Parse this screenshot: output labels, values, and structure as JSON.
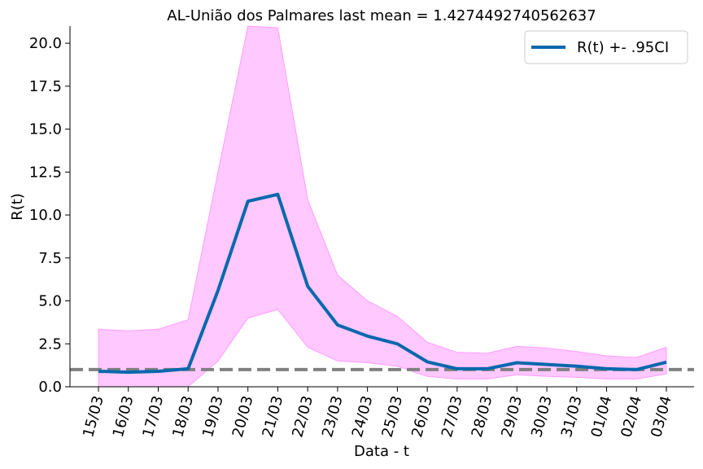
{
  "chart_data": {
    "type": "line",
    "title": "AL-União dos Palmares last mean = 1.4274492740562637",
    "xlabel": "Data - t",
    "ylabel": "R(t)",
    "categories": [
      "15/03",
      "16/03",
      "17/03",
      "18/03",
      "19/03",
      "20/03",
      "21/03",
      "22/03",
      "23/03",
      "24/03",
      "25/03",
      "26/03",
      "27/03",
      "28/03",
      "29/03",
      "30/03",
      "31/03",
      "01/04",
      "02/04",
      "03/04"
    ],
    "series": [
      {
        "name": "R(t) +- .95CI",
        "values": [
          0.9,
          0.85,
          0.9,
          1.05,
          5.6,
          10.8,
          11.2,
          5.85,
          3.6,
          2.95,
          2.5,
          1.45,
          1.05,
          1.05,
          1.4,
          1.3,
          1.2,
          1.05,
          1.0,
          1.43
        ],
        "lower": [
          0.0,
          0.0,
          0.0,
          0.0,
          1.5,
          4.0,
          4.5,
          2.3,
          1.5,
          1.4,
          1.2,
          0.6,
          0.45,
          0.45,
          0.7,
          0.6,
          0.55,
          0.45,
          0.45,
          0.75
        ],
        "upper": [
          3.35,
          3.25,
          3.35,
          3.9,
          12.5,
          21.0,
          20.9,
          10.9,
          6.5,
          5.0,
          4.1,
          2.6,
          2.0,
          1.95,
          2.35,
          2.25,
          2.05,
          1.8,
          1.7,
          2.3
        ]
      }
    ],
    "reference_line": 1.0,
    "ylim": [
      0,
      21
    ],
    "yticks": [
      "0.0",
      "2.5",
      "5.0",
      "7.5",
      "10.0",
      "12.5",
      "15.0",
      "17.5",
      "20.0"
    ],
    "legend": "top-right",
    "grid": false,
    "colors": {
      "line": "#0868ac",
      "band": "#ffc8ff",
      "band_edge": "#ff9cff",
      "reference": "#808080",
      "axis": "#000000"
    }
  }
}
